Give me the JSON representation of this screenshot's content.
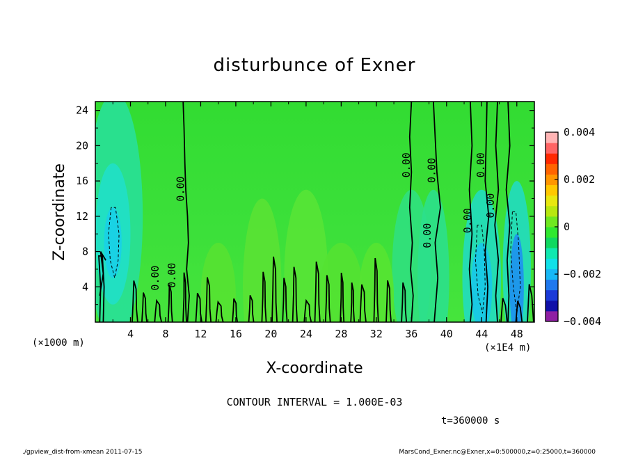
{
  "chart_data": {
    "type": "heatmap",
    "title": "disturbunce of Exner",
    "xlabel": "X-coordinate",
    "ylabel": "Z-coordinate",
    "x_ticks": [
      "4",
      "8",
      "12",
      "16",
      "20",
      "24",
      "28",
      "32",
      "36",
      "40",
      "44",
      "48"
    ],
    "y_ticks": [
      "4",
      "8",
      "12",
      "16",
      "20",
      "24"
    ],
    "x_unit": "(×1E4 m)",
    "y_unit": "(×1000 m)",
    "xlim": [
      0,
      50
    ],
    "ylim": [
      0,
      25
    ],
    "colorbar": {
      "ticks": [
        "0.004",
        "0.002",
        "0",
        "−0.002",
        "−0.004"
      ],
      "range": [
        -0.004,
        0.004
      ],
      "colors": [
        "#8f1fa3",
        "#1010a8",
        "#1a3ad8",
        "#1e78ee",
        "#18b8f5",
        "#10e0e8",
        "#10e8b0",
        "#10d860",
        "#30e830",
        "#70e820",
        "#b8e810",
        "#e8e810",
        "#ffc800",
        "#ff9600",
        "#ff6400",
        "#ff2800",
        "#ff6464",
        "#ffb4b4"
      ]
    },
    "contour_labels": [
      {
        "text": "0.00",
        "x": 10.1,
        "y": 15.1
      },
      {
        "text": "0.00",
        "x": 7.2,
        "y": 5
      },
      {
        "text": "0.00",
        "x": 9.1,
        "y": 5.3
      },
      {
        "text": "0.00",
        "x": 35.8,
        "y": 17.8
      },
      {
        "text": "0.00",
        "x": 38.7,
        "y": 17.2
      },
      {
        "text": "0.00",
        "x": 38.2,
        "y": 9.8
      },
      {
        "text": "0.00",
        "x": 42.8,
        "y": 11.5
      },
      {
        "text": "0.00",
        "x": 44.3,
        "y": 17.8
      },
      {
        "text": "0.00",
        "x": 45.4,
        "y": 13.2
      }
    ],
    "contour_interval": "CONTOUR INTERVAL = 1.000E-03",
    "time": "t=360000 s"
  },
  "footer": {
    "left": "./gpview_dist-from-xmean  2011-07-15",
    "right": "MarsCond_Exner.nc@Exner,x=0:500000,z=0:25000,t=360000"
  }
}
